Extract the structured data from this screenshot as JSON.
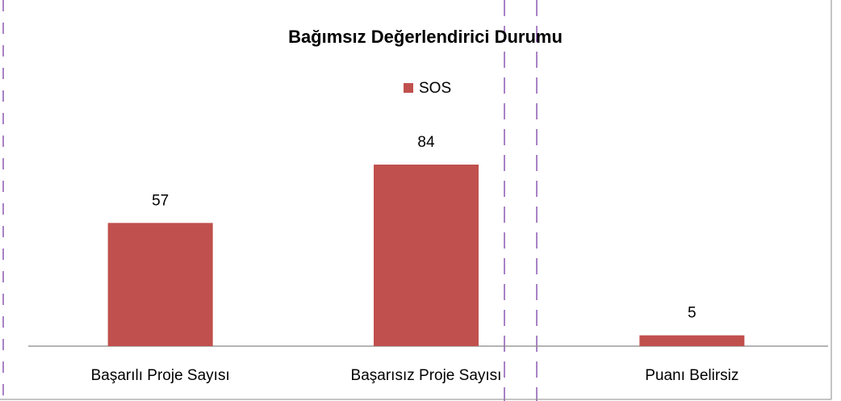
{
  "chart_data": {
    "type": "bar",
    "title": "Bağımsız Değerlendirici Durumu",
    "categories": [
      "Başarılı Proje Sayısı",
      "Başarısız Proje Sayısı",
      "Puanı Belirsiz"
    ],
    "series": [
      {
        "name": "SOS",
        "color": "#c0504d",
        "values": [
          57,
          84,
          5
        ]
      }
    ],
    "legend": "top"
  }
}
